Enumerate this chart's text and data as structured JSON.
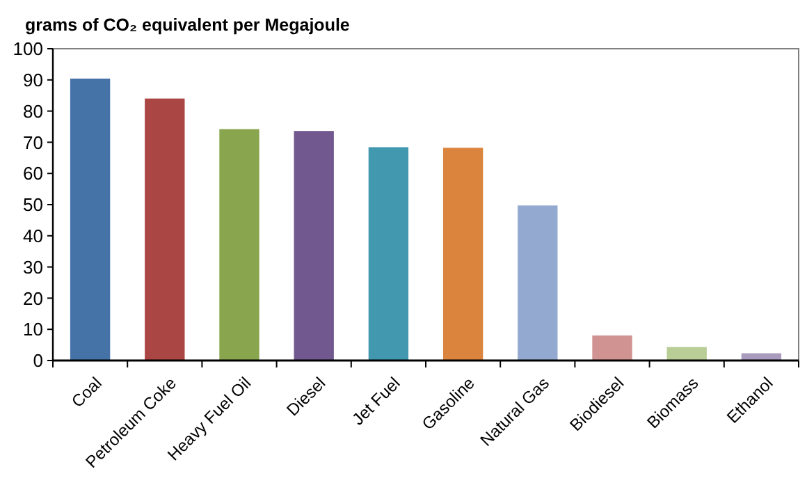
{
  "chart_data": {
    "type": "bar",
    "title": "grams of CO₂ equivalent per Megajoule",
    "categories": [
      "Coal",
      "Petroleum Coke",
      "Heavy Fuel Oil",
      "Diesel",
      "Jet Fuel",
      "Gasoline",
      "Natural Gas",
      "Biodiesel",
      "Biomass",
      "Ethanol"
    ],
    "values": [
      90.6,
      84.2,
      74.4,
      73.8,
      68.6,
      68.4,
      49.9,
      8.2,
      4.5,
      2.5
    ],
    "colors": [
      "#4572a7",
      "#aa4643",
      "#89a54e",
      "#71588f",
      "#4198af",
      "#db843d",
      "#93a9cf",
      "#d19392",
      "#b9cd96",
      "#a99bbd"
    ],
    "ylim": [
      0,
      100
    ],
    "yticks": [
      0,
      10,
      20,
      30,
      40,
      50,
      60,
      70,
      80,
      90,
      100
    ],
    "grid": false
  }
}
